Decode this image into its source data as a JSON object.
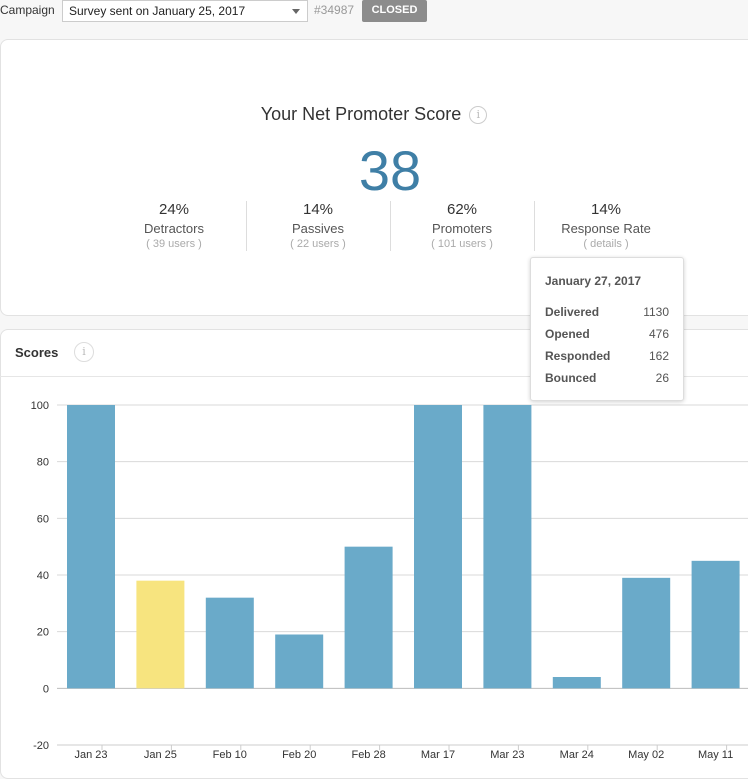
{
  "campaign": {
    "label": "Campaign",
    "selected": "Survey sent on January 25, 2017",
    "id": "#34987",
    "status": "CLOSED"
  },
  "nps": {
    "title": "Your Net Promoter Score",
    "info_glyph": "i",
    "score": "38",
    "stats": [
      {
        "pct": "24%",
        "name": "Detractors",
        "sub": "( 39 users )"
      },
      {
        "pct": "14%",
        "name": "Passives",
        "sub": "( 22 users )"
      },
      {
        "pct": "62%",
        "name": "Promoters",
        "sub": "( 101 users )"
      },
      {
        "pct": "14%",
        "name": "Response Rate",
        "sub": "( details )"
      }
    ]
  },
  "tooltip": {
    "title": "January 27, 2017",
    "rows": [
      {
        "label": "Delivered",
        "value": "1130"
      },
      {
        "label": "Opened",
        "value": "476"
      },
      {
        "label": "Responded",
        "value": "162"
      },
      {
        "label": "Bounced",
        "value": "26"
      }
    ]
  },
  "scores": {
    "title": "Scores",
    "info_glyph": "i"
  },
  "colors": {
    "bar": "#6aaac9",
    "bar_highlight": "#f7e47f",
    "score": "#3f7fa6",
    "badge": "#8c8c8c"
  },
  "chart_data": {
    "type": "bar",
    "categories": [
      "Jan 23",
      "Jan 25",
      "Feb 10",
      "Feb 20",
      "Feb 28",
      "Mar 17",
      "Mar 23",
      "Mar 24",
      "May 02",
      "May 11"
    ],
    "values": [
      100,
      38,
      32,
      19,
      50,
      100,
      100,
      4,
      39,
      45
    ],
    "highlight_index": 1,
    "yticks": [
      100,
      80,
      60,
      40,
      20,
      0,
      -20
    ],
    "ylim": [
      -20,
      100
    ],
    "grid": true,
    "title": "",
    "xlabel": "",
    "ylabel": ""
  }
}
